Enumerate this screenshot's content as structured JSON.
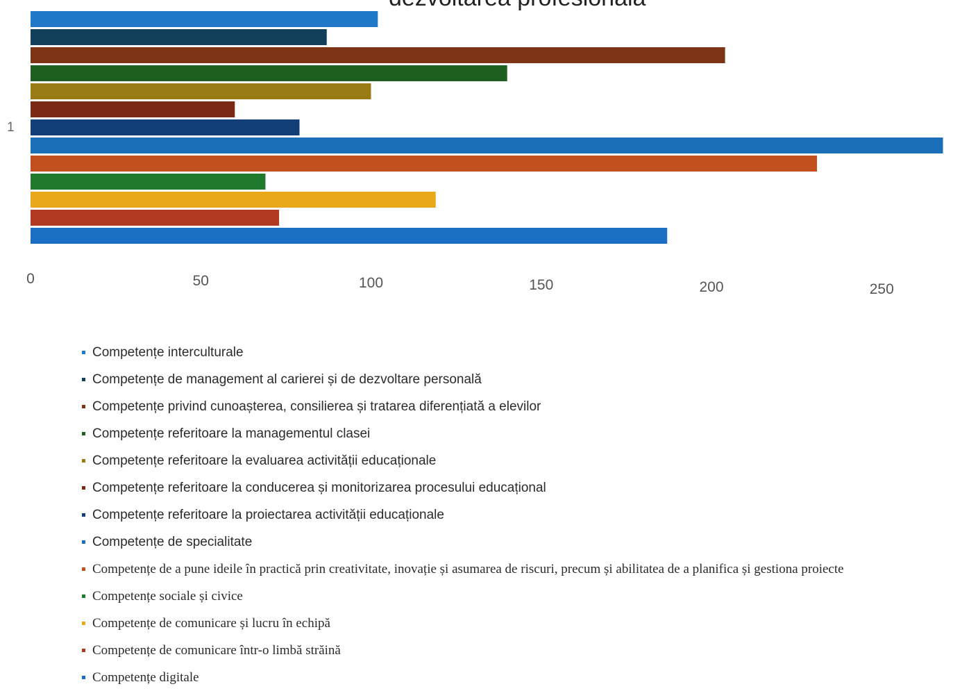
{
  "chart_data": {
    "type": "bar",
    "orientation": "horizontal",
    "title": "dezvoltarea profesională",
    "y_category_label": "1",
    "xlim": [
      0,
      270
    ],
    "x_ticks": [
      0,
      50,
      100,
      150,
      200,
      250
    ],
    "grid": false,
    "legend_position": "bottom",
    "series": [
      {
        "name": "Competențe interculturale",
        "value": 102,
        "color": "#1f78c8"
      },
      {
        "name": "Competențe de management al carierei și de dezvoltare personală",
        "value": 87,
        "color": "#12405a"
      },
      {
        "name": "Competențe privind cunoașterea, consilierea și tratarea diferențiată a elevilor",
        "value": 204,
        "color": "#7c3414"
      },
      {
        "name": "Competențe referitoare la managementul clasei",
        "value": 140,
        "color": "#1e5e20"
      },
      {
        "name": "Competențe referitoare la evaluarea activității educaționale",
        "value": 100,
        "color": "#9a7a14"
      },
      {
        "name": "Competențe referitoare la conducerea și monitorizarea procesului educațional",
        "value": 60,
        "color": "#7a2a14"
      },
      {
        "name": "Competențe referitoare la proiectarea activității educaționale",
        "value": 79,
        "color": "#123f78"
      },
      {
        "name": "Competențe de specialitate",
        "value": 268,
        "color": "#1a6fb8"
      },
      {
        "name": "Competențe de a pune ideile în practică prin creativitate, inovație și asumarea de riscuri, precum și abilitatea de a planifica și gestiona proiecte",
        "value": 231,
        "color": "#c2501e"
      },
      {
        "name": "Competențe sociale și civice",
        "value": 69,
        "color": "#1f7a2e"
      },
      {
        "name": "Competențe de comunicare și lucru în echipă",
        "value": 119,
        "color": "#e8a81a"
      },
      {
        "name": "Competențe de comunicare într-o limbă străină",
        "value": 73,
        "color": "#b33a22"
      },
      {
        "name": "Competențe digitale",
        "value": 187,
        "color": "#1a6ec4"
      }
    ]
  }
}
